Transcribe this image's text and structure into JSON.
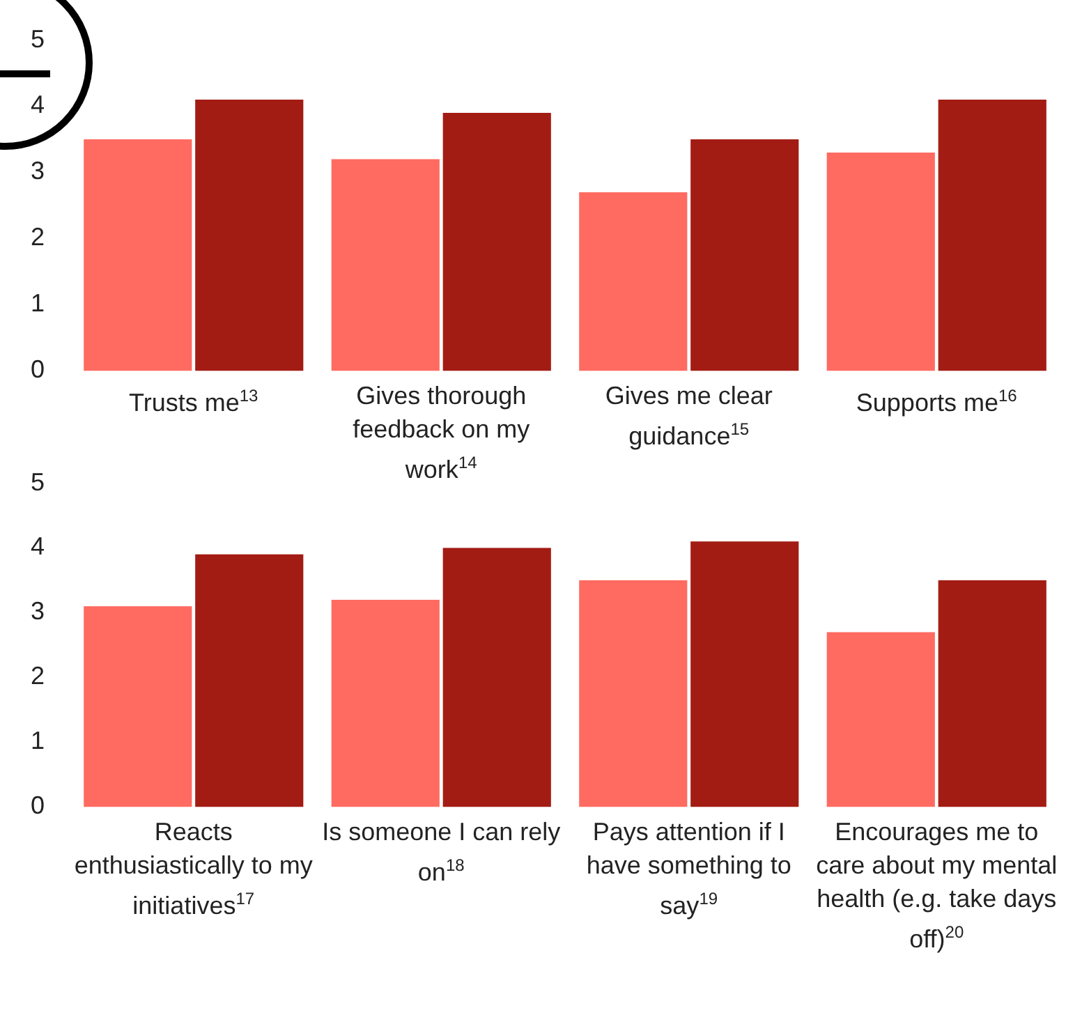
{
  "chart_data": [
    {
      "type": "bar",
      "categories": [
        "Trusts me$^{13}$",
        "Gives thorough feedback on my work$^{14}$",
        "Gives me clear guidance$^{15}$",
        "Supports me$^{16}$"
      ],
      "series": [
        {
          "color": "#ff6b61",
          "values": [
            3.5,
            3.2,
            2.7,
            3.3
          ]
        },
        {
          "color": "#a31c14",
          "values": [
            4.1,
            3.9,
            3.5,
            4.1
          ]
        }
      ],
      "ylim": [
        0,
        5
      ],
      "yticks": [
        0,
        1,
        2,
        3,
        4,
        5
      ],
      "grid": false,
      "legend": false
    },
    {
      "type": "bar",
      "categories": [
        "Reacts enthusiastically to my initiatives$^{17}$",
        "Is someone I can rely on$^{18}$",
        "Pays attention if I have something to say$^{19}$",
        "Encourages me to care about my mental health (e.g. take days off)$^{20}$"
      ],
      "series": [
        {
          "color": "#ff6b61",
          "values": [
            3.1,
            3.2,
            3.5,
            2.7
          ]
        },
        {
          "color": "#a31c14",
          "values": [
            3.9,
            4.0,
            4.1,
            3.5
          ]
        }
      ],
      "ylim": [
        0,
        5
      ],
      "yticks": [
        0,
        1,
        2,
        3,
        4,
        5
      ],
      "grid": false,
      "legend": false
    }
  ]
}
